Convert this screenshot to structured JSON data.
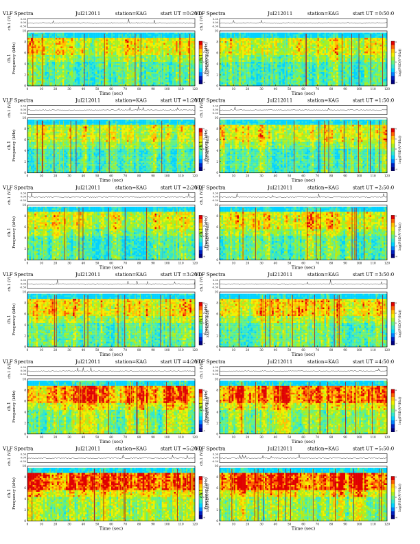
{
  "common": {
    "prefix": "VLF Spectra",
    "station": "station=KAG",
    "ch_label": "ch.1 (V)",
    "ylabel_line1": "ch.1",
    "ylabel_line2": "Frequency (kHz)",
    "xlabel": "Time (sec)",
    "cbar_label": "log(PSD(V²/Hz))",
    "signal_ticks": [
      "0.30",
      "0.00",
      "-0.30"
    ],
    "freq_ticks": [
      "0",
      "2",
      "4",
      "6",
      "8",
      "10"
    ],
    "time_ticks": [
      "0",
      "10",
      "20",
      "30",
      "40",
      "50",
      "60",
      "70",
      "80",
      "90",
      "100",
      "110",
      "120"
    ],
    "cbar_ticks": [
      "4",
      "2",
      "0",
      "-2",
      "-4"
    ]
  },
  "chart_data": [
    {
      "type": "heatmap",
      "title_prefix": "VLF Spectra",
      "date": "Jul212011",
      "station": "station=KAG",
      "start": "start UT =0:20:0",
      "intensity": 0.45,
      "xlim": [
        0,
        120
      ],
      "ylim": [
        0,
        10
      ],
      "xlabel": "Time (sec)",
      "ylabel": "Frequency (kHz)",
      "colorbar_label": "log(PSD(V²/Hz))"
    },
    {
      "type": "heatmap",
      "title_prefix": "VLF Spectra",
      "date": "Jul212011",
      "station": "station=KAG",
      "start": "start UT =0:50:0",
      "intensity": 0.4,
      "xlim": [
        0,
        120
      ],
      "ylim": [
        0,
        10
      ],
      "xlabel": "Time (sec)",
      "ylabel": "Frequency (kHz)",
      "colorbar_label": "log(PSD(V²/Hz))"
    },
    {
      "type": "heatmap",
      "title_prefix": "VLF Spectra",
      "date": "Jul212011",
      "station": "station=KAG",
      "start": "start UT =1:20:0",
      "intensity": 0.35,
      "xlim": [
        0,
        120
      ],
      "ylim": [
        0,
        10
      ],
      "xlabel": "Time (sec)",
      "ylabel": "Frequency (kHz)",
      "colorbar_label": "log(PSD(V²/Hz))"
    },
    {
      "type": "heatmap",
      "title_prefix": "VLF Spectra",
      "date": "Jul212011",
      "station": "station=KAG",
      "start": "start UT =1:50:0",
      "intensity": 0.4,
      "xlim": [
        0,
        120
      ],
      "ylim": [
        0,
        10
      ],
      "xlabel": "Time (sec)",
      "ylabel": "Frequency (kHz)",
      "colorbar_label": "log(PSD(V²/Hz))"
    },
    {
      "type": "heatmap",
      "title_prefix": "VLF Spectra",
      "date": "Jul212011",
      "station": "station=KAG",
      "start": "start UT =2:20:0",
      "intensity": 0.45,
      "xlim": [
        0,
        120
      ],
      "ylim": [
        0,
        10
      ],
      "xlabel": "Time (sec)",
      "ylabel": "Frequency (kHz)",
      "colorbar_label": "log(PSD(V²/Hz))"
    },
    {
      "type": "heatmap",
      "title_prefix": "VLF Spectra",
      "date": "Jul212011",
      "station": "station=KAG",
      "start": "start UT =2:50:0",
      "intensity": 0.45,
      "xlim": [
        0,
        120
      ],
      "ylim": [
        0,
        10
      ],
      "xlabel": "Time (sec)",
      "ylabel": "Frequency (kHz)",
      "colorbar_label": "log(PSD(V²/Hz))"
    },
    {
      "type": "heatmap",
      "title_prefix": "VLF Spectra",
      "date": "Jul212011",
      "station": "station=KAG",
      "start": "start UT =3:20:0",
      "intensity": 0.55,
      "xlim": [
        0,
        120
      ],
      "ylim": [
        0,
        10
      ],
      "xlabel": "Time (sec)",
      "ylabel": "Frequency (kHz)",
      "colorbar_label": "log(PSD(V²/Hz))"
    },
    {
      "type": "heatmap",
      "title_prefix": "VLF Spectra",
      "date": "Jul212011",
      "station": "station=KAG",
      "start": "start UT =3:50:0",
      "intensity": 0.6,
      "xlim": [
        0,
        120
      ],
      "ylim": [
        0,
        10
      ],
      "xlabel": "Time (sec)",
      "ylabel": "Frequency (kHz)",
      "colorbar_label": "log(PSD(V²/Hz))"
    },
    {
      "type": "heatmap",
      "title_prefix": "VLF Spectra",
      "date": "Jul212011",
      "station": "station=KAG",
      "start": "start UT =4:20:0",
      "intensity": 0.75,
      "xlim": [
        0,
        120
      ],
      "ylim": [
        0,
        10
      ],
      "xlabel": "Time (sec)",
      "ylabel": "Frequency (kHz)",
      "colorbar_label": "log(PSD(V²/Hz))"
    },
    {
      "type": "heatmap",
      "title_prefix": "VLF Spectra",
      "date": "Jul212011",
      "station": "station=KAG",
      "start": "start UT =4:50:0",
      "intensity": 0.8,
      "xlim": [
        0,
        120
      ],
      "ylim": [
        0,
        10
      ],
      "xlabel": "Time (sec)",
      "ylabel": "Frequency (kHz)",
      "colorbar_label": "log(PSD(V²/Hz))"
    },
    {
      "type": "heatmap",
      "title_prefix": "VLF Spectra",
      "date": "Jul212011",
      "station": "station=KAG",
      "start": "start UT =5:20:0",
      "intensity": 0.85,
      "xlim": [
        0,
        120
      ],
      "ylim": [
        0,
        10
      ],
      "xlabel": "Time (sec)",
      "ylabel": "Frequency (kHz)",
      "colorbar_label": "log(PSD(V²/Hz))"
    },
    {
      "type": "heatmap",
      "title_prefix": "VLF Spectra",
      "date": "Jul212011",
      "station": "station=KAG",
      "start": "start UT =5:50:0",
      "intensity": 0.88,
      "xlim": [
        0,
        120
      ],
      "ylim": [
        0,
        10
      ],
      "xlabel": "Time (sec)",
      "ylabel": "Frequency (kHz)",
      "colorbar_label": "log(PSD(V²/Hz))"
    }
  ]
}
